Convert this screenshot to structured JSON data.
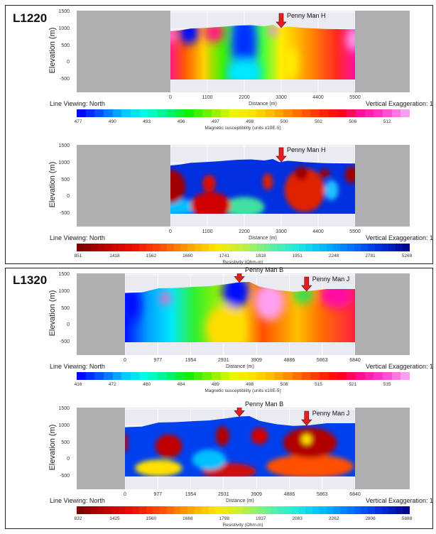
{
  "groups": [
    {
      "label": "L1220"
    },
    {
      "label": "L1320"
    }
  ],
  "palettes": {
    "magnetic": [
      "#0008ff",
      "#0060ff",
      "#00c8ff",
      "#00ffe0",
      "#00f080",
      "#10f000",
      "#80f000",
      "#e8f800",
      "#ffe000",
      "#ffb000",
      "#ff7000",
      "#ff3000",
      "#ff0010",
      "#ff10a0",
      "#ff40d0",
      "#f8a0f0"
    ],
    "resistivity": [
      "#800000",
      "#c00000",
      "#f01000",
      "#ff5000",
      "#ffa000",
      "#ffe800",
      "#c0f040",
      "#60f0a0",
      "#20e8e0",
      "#00b8ff",
      "#0070ff",
      "#0030e0",
      "#000890"
    ]
  },
  "chart_data": [
    {
      "type": "heatmap",
      "line": "L1220",
      "xlabel": "Distance (m)",
      "ylabel": "Elevation (m)",
      "xlim": [
        0,
        5500
      ],
      "ylim": [
        -500,
        1500
      ],
      "xticks": [
        "0",
        "1100",
        "2200",
        "3300",
        "4400",
        "5500"
      ],
      "yticks": [
        "1500",
        "1000",
        "500",
        "0",
        "-500"
      ],
      "footer_left": "Line Viewing: North",
      "footer_right": "Vertical Exaggeration: 1",
      "colorbar": {
        "palette": "magnetic",
        "title": "Magnetic susceptibility (units x10E-5)",
        "ticks": [
          "477",
          "490",
          "493",
          "496",
          "497",
          "498",
          "500",
          "502",
          "506",
          "512"
        ]
      },
      "annotations": [
        {
          "label": "Penny Man H",
          "distance": 3300
        }
      ]
    },
    {
      "type": "heatmap",
      "line": "L1220",
      "xlabel": "Distance (m)",
      "ylabel": "Elevation (m)",
      "xlim": [
        0,
        5500
      ],
      "ylim": [
        -500,
        1500
      ],
      "xticks": [
        "0",
        "1100",
        "2200",
        "3300",
        "4400",
        "5500"
      ],
      "yticks": [
        "1500",
        "1000",
        "500",
        "0",
        "-500"
      ],
      "footer_left": "Line Viewing: North",
      "footer_right": "Vertical Exaggeration: 1",
      "colorbar": {
        "palette": "resistivity",
        "title": "Resistivity (Ohm-m)",
        "ticks": [
          "851",
          "1418",
          "1562",
          "1660",
          "1741",
          "1818",
          "1951",
          "2248",
          "2781",
          "5269"
        ]
      },
      "annotations": [
        {
          "label": "Penny Man H",
          "distance": 3300
        }
      ]
    },
    {
      "type": "heatmap",
      "line": "L1320",
      "xlabel": "Distance (m)",
      "ylabel": "Elevation (m)",
      "xlim": [
        0,
        6840
      ],
      "ylim": [
        -500,
        1500
      ],
      "xticks": [
        "0",
        "977",
        "1954",
        "2931",
        "3909",
        "4886",
        "5863",
        "6840"
      ],
      "yticks": [
        "1500",
        "1000",
        "500",
        "0",
        "-500"
      ],
      "footer_left": "Line Viewing: North",
      "footer_right": "Vertical Exaggeration: 1",
      "colorbar": {
        "palette": "magnetic",
        "title": "Magnetic susceptibility (units x10E-5)",
        "ticks": [
          "416",
          "472",
          "480",
          "484",
          "489",
          "498",
          "508",
          "515",
          "521",
          "535"
        ]
      },
      "annotations": [
        {
          "label": "Penny Man B",
          "distance": 3400
        },
        {
          "label": "Penny Man J",
          "distance": 5400
        }
      ]
    },
    {
      "type": "heatmap",
      "line": "L1320",
      "xlabel": "Distance (m)",
      "ylabel": "Elevation (m)",
      "xlim": [
        0,
        6840
      ],
      "ylim": [
        -500,
        1500
      ],
      "xticks": [
        "0",
        "977",
        "1954",
        "2931",
        "3909",
        "4886",
        "5863",
        "6840"
      ],
      "yticks": [
        "1500",
        "1000",
        "500",
        "0",
        "-500"
      ],
      "footer_left": "Line Viewing: North",
      "footer_right": "Vertical Exaggeration: 1",
      "colorbar": {
        "palette": "resistivity",
        "title": "Resistivity (Ohm-m)",
        "ticks": [
          "832",
          "1425",
          "1560",
          "1668",
          "1798",
          "1937",
          "2083",
          "2262",
          "2806",
          "5888"
        ]
      },
      "annotations": [
        {
          "label": "Penny Man B",
          "distance": 3400
        },
        {
          "label": "Penny Man J",
          "distance": 5400
        }
      ]
    }
  ]
}
